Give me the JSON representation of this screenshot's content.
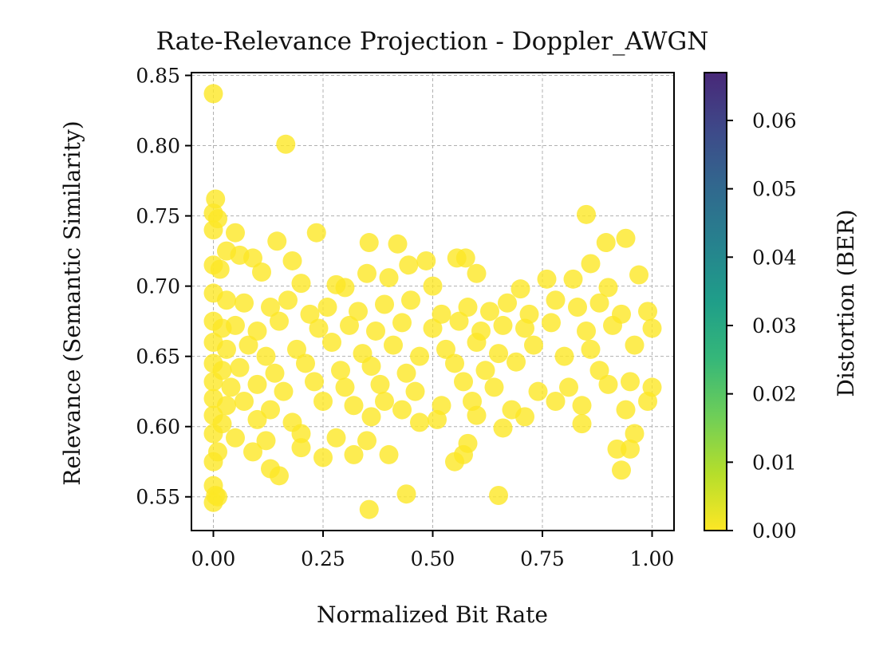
{
  "chart_data": {
    "type": "scatter",
    "title": "Rate-Relevance Projection - Doppler_AWGN",
    "xlabel": "Normalized Bit Rate",
    "ylabel": "Relevance (Semantic Similarity)",
    "xlim": [
      -0.05,
      1.05
    ],
    "ylim": [
      0.526,
      0.852
    ],
    "xticks": [
      "0.00",
      "0.25",
      "0.50",
      "0.75",
      "1.00"
    ],
    "yticks": [
      "0.55",
      "0.60",
      "0.65",
      "0.70",
      "0.75",
      "0.80",
      "0.85"
    ],
    "grid": true,
    "colorbar": {
      "label": "Distortion (BER)",
      "range": [
        0.0,
        0.067
      ],
      "ticks": [
        "0.00",
        "0.01",
        "0.02",
        "0.03",
        "0.04",
        "0.05",
        "0.06"
      ],
      "colormap": "viridis_r"
    },
    "marker_color": "#fde725",
    "marker_alpha": 0.8,
    "series": [
      {
        "points": [
          [
            0.0,
            0.837
          ],
          [
            0.165,
            0.801
          ],
          [
            0.005,
            0.762
          ],
          [
            0.0,
            0.752
          ],
          [
            0.01,
            0.748
          ],
          [
            0.0,
            0.74
          ],
          [
            0.05,
            0.738
          ],
          [
            0.235,
            0.738
          ],
          [
            0.85,
            0.751
          ],
          [
            0.94,
            0.734
          ],
          [
            0.145,
            0.732
          ],
          [
            0.355,
            0.731
          ],
          [
            0.42,
            0.73
          ],
          [
            0.895,
            0.731
          ],
          [
            0.03,
            0.725
          ],
          [
            0.06,
            0.722
          ],
          [
            0.09,
            0.72
          ],
          [
            0.18,
            0.718
          ],
          [
            0.555,
            0.72
          ],
          [
            0.575,
            0.72
          ],
          [
            0.485,
            0.718
          ],
          [
            0.445,
            0.715
          ],
          [
            0.86,
            0.716
          ],
          [
            0.0,
            0.715
          ],
          [
            0.015,
            0.712
          ],
          [
            0.11,
            0.71
          ],
          [
            0.35,
            0.709
          ],
          [
            0.4,
            0.706
          ],
          [
            0.6,
            0.709
          ],
          [
            0.97,
            0.708
          ],
          [
            0.76,
            0.705
          ],
          [
            0.82,
            0.705
          ],
          [
            0.2,
            0.702
          ],
          [
            0.28,
            0.701
          ],
          [
            0.3,
            0.699
          ],
          [
            0.5,
            0.7
          ],
          [
            0.7,
            0.698
          ],
          [
            0.9,
            0.699
          ],
          [
            0.0,
            0.695
          ],
          [
            0.03,
            0.69
          ],
          [
            0.07,
            0.688
          ],
          [
            0.13,
            0.685
          ],
          [
            0.17,
            0.69
          ],
          [
            0.22,
            0.68
          ],
          [
            0.26,
            0.685
          ],
          [
            0.33,
            0.682
          ],
          [
            0.39,
            0.687
          ],
          [
            0.45,
            0.69
          ],
          [
            0.52,
            0.68
          ],
          [
            0.58,
            0.685
          ],
          [
            0.63,
            0.682
          ],
          [
            0.67,
            0.688
          ],
          [
            0.72,
            0.68
          ],
          [
            0.78,
            0.69
          ],
          [
            0.83,
            0.685
          ],
          [
            0.88,
            0.688
          ],
          [
            0.93,
            0.68
          ],
          [
            0.99,
            0.682
          ],
          [
            0.0,
            0.675
          ],
          [
            0.02,
            0.67
          ],
          [
            0.05,
            0.672
          ],
          [
            0.1,
            0.668
          ],
          [
            0.15,
            0.675
          ],
          [
            0.24,
            0.67
          ],
          [
            0.31,
            0.672
          ],
          [
            0.37,
            0.668
          ],
          [
            0.43,
            0.674
          ],
          [
            0.5,
            0.67
          ],
          [
            0.56,
            0.675
          ],
          [
            0.61,
            0.668
          ],
          [
            0.66,
            0.672
          ],
          [
            0.71,
            0.67
          ],
          [
            0.77,
            0.674
          ],
          [
            0.85,
            0.668
          ],
          [
            0.91,
            0.672
          ],
          [
            1.0,
            0.67
          ],
          [
            0.0,
            0.66
          ],
          [
            0.03,
            0.655
          ],
          [
            0.08,
            0.658
          ],
          [
            0.12,
            0.65
          ],
          [
            0.19,
            0.655
          ],
          [
            0.27,
            0.66
          ],
          [
            0.34,
            0.652
          ],
          [
            0.41,
            0.658
          ],
          [
            0.47,
            0.65
          ],
          [
            0.53,
            0.655
          ],
          [
            0.6,
            0.66
          ],
          [
            0.65,
            0.652
          ],
          [
            0.73,
            0.658
          ],
          [
            0.8,
            0.65
          ],
          [
            0.86,
            0.655
          ],
          [
            0.96,
            0.658
          ],
          [
            0.0,
            0.645
          ],
          [
            0.02,
            0.64
          ],
          [
            0.06,
            0.642
          ],
          [
            0.14,
            0.638
          ],
          [
            0.21,
            0.645
          ],
          [
            0.29,
            0.64
          ],
          [
            0.36,
            0.643
          ],
          [
            0.44,
            0.638
          ],
          [
            0.55,
            0.645
          ],
          [
            0.62,
            0.64
          ],
          [
            0.69,
            0.646
          ],
          [
            0.88,
            0.64
          ],
          [
            0.0,
            0.632
          ],
          [
            0.04,
            0.628
          ],
          [
            0.1,
            0.63
          ],
          [
            0.16,
            0.625
          ],
          [
            0.23,
            0.632
          ],
          [
            0.3,
            0.628
          ],
          [
            0.38,
            0.63
          ],
          [
            0.46,
            0.625
          ],
          [
            0.57,
            0.632
          ],
          [
            0.64,
            0.628
          ],
          [
            0.74,
            0.625
          ],
          [
            0.81,
            0.628
          ],
          [
            0.9,
            0.63
          ],
          [
            0.95,
            0.632
          ],
          [
            1.0,
            0.628
          ],
          [
            0.0,
            0.62
          ],
          [
            0.03,
            0.615
          ],
          [
            0.07,
            0.618
          ],
          [
            0.13,
            0.612
          ],
          [
            0.25,
            0.618
          ],
          [
            0.32,
            0.615
          ],
          [
            0.39,
            0.618
          ],
          [
            0.43,
            0.612
          ],
          [
            0.52,
            0.615
          ],
          [
            0.59,
            0.618
          ],
          [
            0.68,
            0.612
          ],
          [
            0.78,
            0.618
          ],
          [
            0.84,
            0.615
          ],
          [
            0.94,
            0.612
          ],
          [
            0.99,
            0.618
          ],
          [
            0.0,
            0.608
          ],
          [
            0.02,
            0.602
          ],
          [
            0.1,
            0.605
          ],
          [
            0.18,
            0.603
          ],
          [
            0.36,
            0.607
          ],
          [
            0.47,
            0.603
          ],
          [
            0.51,
            0.605
          ],
          [
            0.6,
            0.608
          ],
          [
            0.71,
            0.607
          ],
          [
            0.84,
            0.602
          ],
          [
            0.0,
            0.595
          ],
          [
            0.05,
            0.592
          ],
          [
            0.12,
            0.59
          ],
          [
            0.2,
            0.595
          ],
          [
            0.28,
            0.592
          ],
          [
            0.35,
            0.59
          ],
          [
            0.58,
            0.588
          ],
          [
            0.66,
            0.599
          ],
          [
            0.96,
            0.595
          ],
          [
            0.01,
            0.582
          ],
          [
            0.09,
            0.582
          ],
          [
            0.2,
            0.585
          ],
          [
            0.25,
            0.578
          ],
          [
            0.32,
            0.58
          ],
          [
            0.4,
            0.58
          ],
          [
            0.57,
            0.58
          ],
          [
            0.92,
            0.584
          ],
          [
            0.95,
            0.584
          ],
          [
            0.0,
            0.575
          ],
          [
            0.13,
            0.57
          ],
          [
            0.55,
            0.575
          ],
          [
            0.93,
            0.569
          ],
          [
            0.15,
            0.565
          ],
          [
            0.0,
            0.558
          ],
          [
            0.005,
            0.551
          ],
          [
            0.01,
            0.55
          ],
          [
            0.44,
            0.552
          ],
          [
            0.65,
            0.551
          ],
          [
            0.0,
            0.546
          ],
          [
            0.355,
            0.541
          ]
        ]
      }
    ]
  }
}
